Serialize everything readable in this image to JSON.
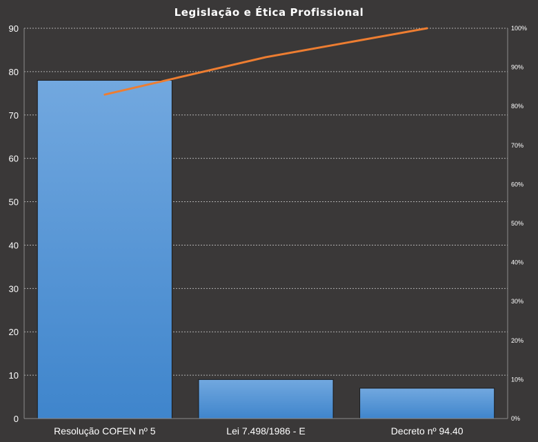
{
  "chart_data": {
    "type": "bar",
    "title": "Legislação e Ética Profissional",
    "categories": [
      "Resolução COFEN nº 5",
      "Lei 7.498/1986 - E",
      "Decreto nº 94.40"
    ],
    "series": [
      {
        "values": [
          78,
          9,
          7
        ],
        "color": "#5b9bd5"
      }
    ],
    "line_series": {
      "axis": "right",
      "values_percent": [
        83,
        92.6,
        100
      ],
      "color": "#ed7d31"
    },
    "ylim": [
      0,
      90
    ],
    "yticks": [
      0,
      10,
      20,
      30,
      40,
      50,
      60,
      70,
      80,
      90
    ],
    "y2lim": [
      0,
      100
    ],
    "y2ticks": [
      "0%",
      "10%",
      "20%",
      "30%",
      "40%",
      "50%",
      "60%",
      "70%",
      "80%",
      "90%",
      "100%"
    ],
    "grid": true,
    "xlabel": "",
    "ylabel": ""
  },
  "colors": {
    "background": "#3a3838",
    "bar_top": "#72a8df",
    "bar_bottom": "#3f85cc",
    "line": "#ed7d31",
    "text": "#ffffff"
  }
}
